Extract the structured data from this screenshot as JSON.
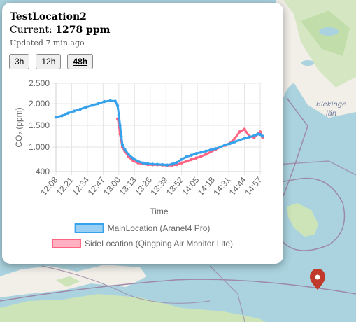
{
  "popup": {
    "title": "TestLocation2",
    "current_label": "Current:",
    "current_value": "1278 ppm",
    "updated": "Updated 7 min ago",
    "buttons": [
      {
        "label": "3h",
        "active": false
      },
      {
        "label": "12h",
        "active": false
      },
      {
        "label": "48h",
        "active": true
      }
    ]
  },
  "map": {
    "labels": [
      "Blekinge",
      "län"
    ],
    "marker_icon": "map-pin-icon",
    "colors": {
      "sea": "#aad3df",
      "land": "#f2efe9",
      "forest": "#cde4b8",
      "border": "#9e8aa8"
    }
  },
  "chart_data": {
    "type": "line",
    "xlabel": "Time",
    "ylabel": "CO₂ (ppm)",
    "yticks": [
      "2.500",
      "2.000",
      "1.500",
      "1.000",
      "400"
    ],
    "ytick_values": [
      2500,
      2000,
      1500,
      1000,
      400
    ],
    "xticks": [
      "12:08",
      "12:21",
      "12:34",
      "12:47",
      "13:00",
      "13:13",
      "13:26",
      "13:39",
      "13:52",
      "14:05",
      "14:18",
      "14:31",
      "14:44",
      "14:57"
    ],
    "grid": true,
    "legend_position": "bottom",
    "series": [
      {
        "name": "MainLocation (Aranet4 Pro)",
        "color": "#36a2eb",
        "fill": "#9ad0f5",
        "x": [
          "12:08",
          "12:13",
          "12:18",
          "12:23",
          "12:28",
          "12:33",
          "12:38",
          "12:43",
          "12:48",
          "12:53",
          "12:57",
          "12:59",
          "13:00",
          "13:01",
          "13:02",
          "13:03",
          "13:05",
          "13:08",
          "13:12",
          "13:16",
          "13:20",
          "13:24",
          "13:28",
          "13:32",
          "13:36",
          "13:40",
          "13:44",
          "13:48",
          "13:52",
          "13:56",
          "14:00",
          "14:04",
          "14:08",
          "14:12",
          "14:16",
          "14:20",
          "14:24",
          "14:28",
          "14:32",
          "14:36",
          "14:40",
          "14:44",
          "14:48",
          "14:52",
          "14:55",
          "14:57",
          "14:59"
        ],
        "values": [
          1690,
          1720,
          1780,
          1830,
          1870,
          1920,
          1960,
          2000,
          2050,
          2070,
          2060,
          1950,
          1750,
          1500,
          1250,
          1050,
          940,
          820,
          720,
          650,
          610,
          590,
          580,
          575,
          570,
          560,
          580,
          620,
          700,
          760,
          800,
          840,
          870,
          900,
          930,
          960,
          1000,
          1050,
          1080,
          1120,
          1160,
          1200,
          1230,
          1260,
          1300,
          1290,
          1250
        ]
      },
      {
        "name": "SideLocation (Qingping Air Monitor Lite)",
        "color": "#ff6384",
        "fill": "#ffb1c1",
        "x": [
          "12:59",
          "13:00",
          "13:01",
          "13:02",
          "13:03",
          "13:05",
          "13:08",
          "13:12",
          "13:16",
          "13:20",
          "13:24",
          "13:28",
          "13:32",
          "13:36",
          "13:40",
          "13:44",
          "13:48",
          "13:52",
          "13:56",
          "14:00",
          "14:04",
          "14:08",
          "14:12",
          "14:16",
          "14:20",
          "14:24",
          "14:28",
          "14:32",
          "14:36",
          "14:40",
          "14:44",
          "14:48",
          "14:52",
          "14:55",
          "14:57",
          "14:59"
        ],
        "values": [
          1650,
          1550,
          1300,
          1150,
          1000,
          900,
          760,
          660,
          610,
          585,
          570,
          565,
          565,
          560,
          545,
          555,
          570,
          610,
          650,
          690,
          730,
          770,
          820,
          880,
          940,
          1000,
          1040,
          1090,
          1200,
          1350,
          1410,
          1250,
          1220,
          1300,
          1350,
          1220
        ]
      }
    ]
  }
}
